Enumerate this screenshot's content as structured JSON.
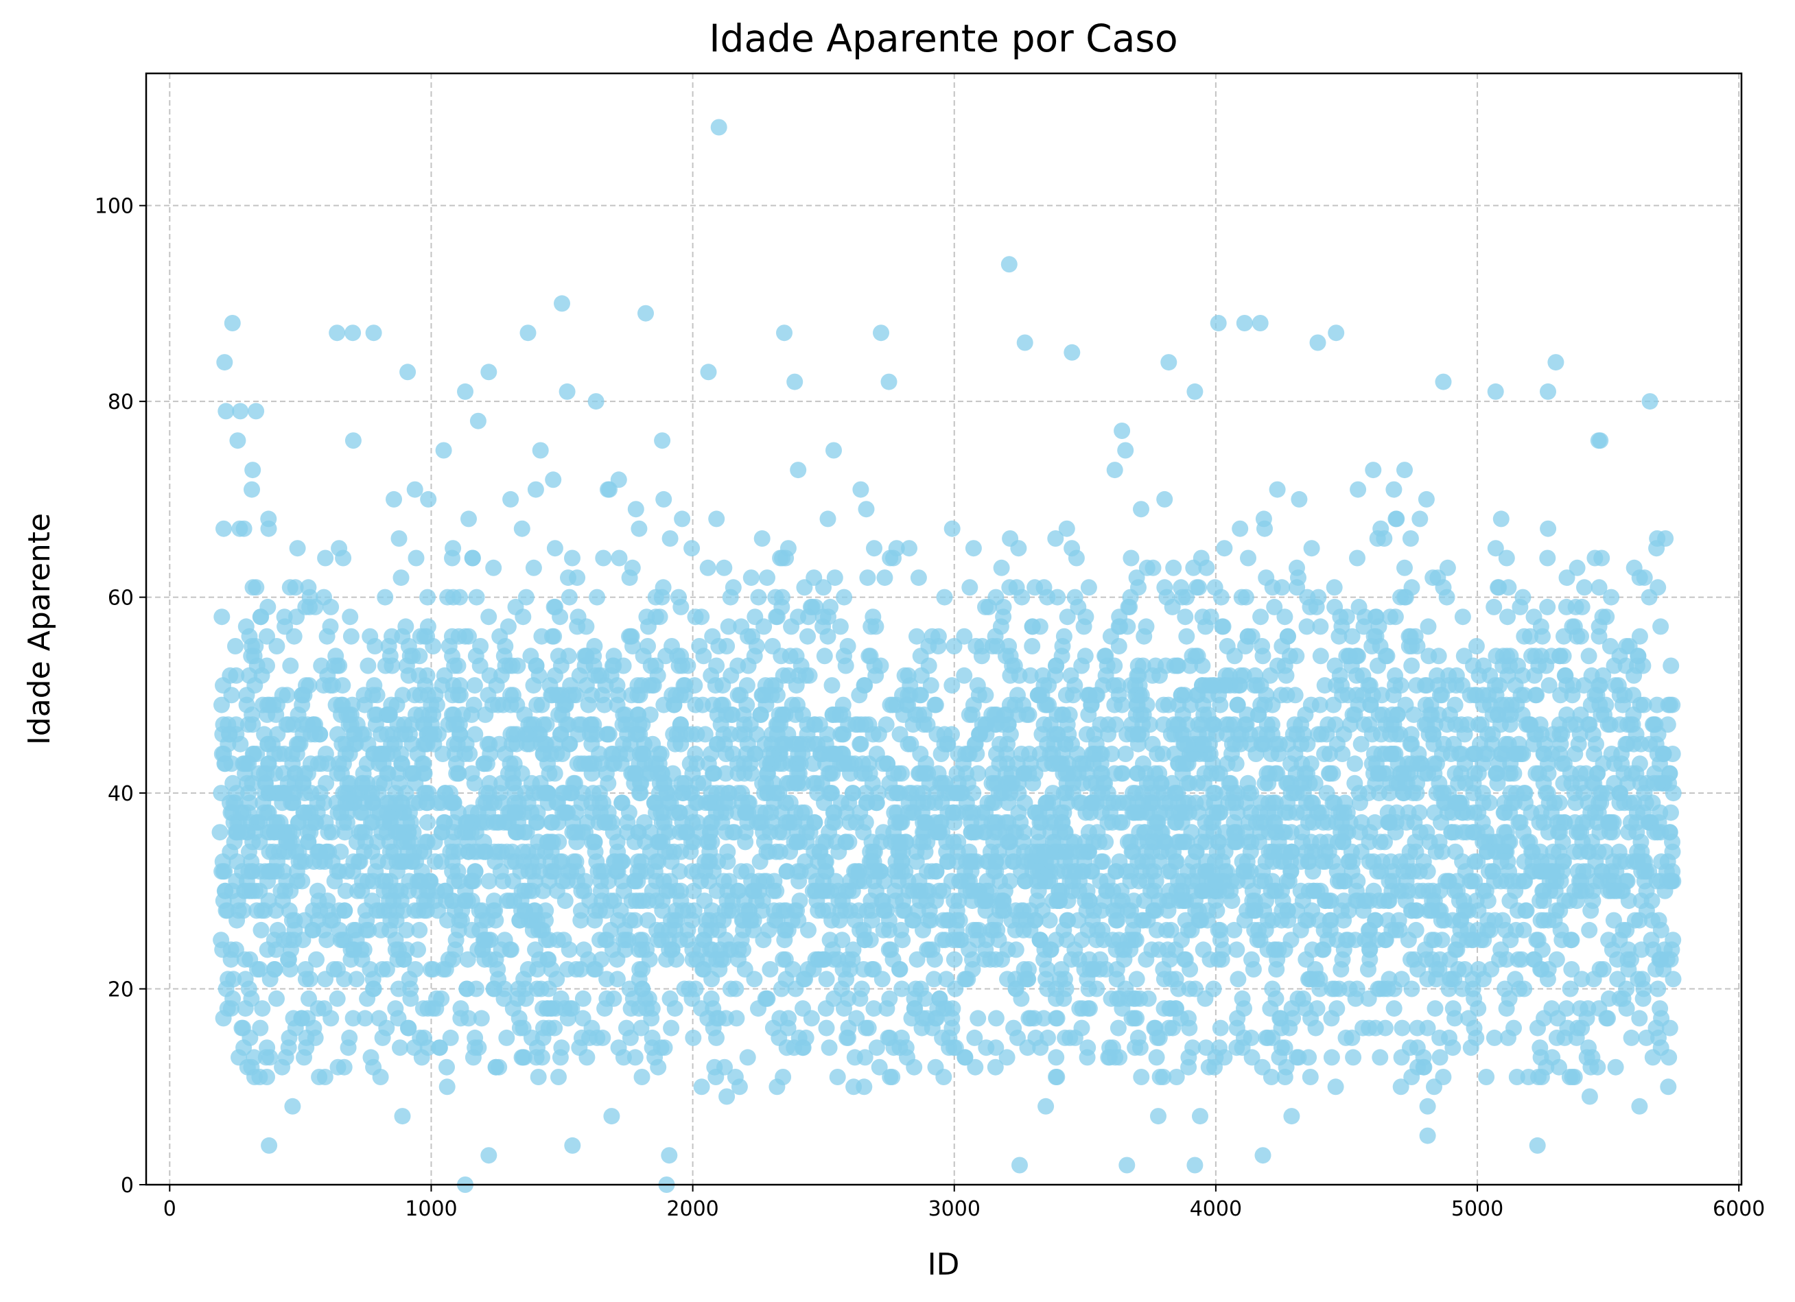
{
  "chart_data": {
    "type": "scatter",
    "title": "Idade Aparente por Caso",
    "xlabel": "ID",
    "ylabel": "Idade Aparente",
    "xlim": [
      -90,
      6010
    ],
    "ylim": [
      0,
      113.5
    ],
    "xticks": [
      0,
      1000,
      2000,
      3000,
      4000,
      5000,
      6000
    ],
    "yticks": [
      0,
      20,
      40,
      60,
      80,
      100
    ],
    "grid": true,
    "marker_color": "#87CEEB",
    "marker_alpha": 0.75,
    "outliers": [
      {
        "x": 210,
        "y": 84
      },
      {
        "x": 240,
        "y": 88
      },
      {
        "x": 215,
        "y": 79
      },
      {
        "x": 260,
        "y": 76
      },
      {
        "x": 270,
        "y": 79
      },
      {
        "x": 330,
        "y": 79
      },
      {
        "x": 640,
        "y": 87
      },
      {
        "x": 700,
        "y": 87
      },
      {
        "x": 780,
        "y": 87
      },
      {
        "x": 910,
        "y": 83
      },
      {
        "x": 1130,
        "y": 81
      },
      {
        "x": 1220,
        "y": 83
      },
      {
        "x": 1370,
        "y": 87
      },
      {
        "x": 1500,
        "y": 90
      },
      {
        "x": 1520,
        "y": 81
      },
      {
        "x": 1630,
        "y": 80
      },
      {
        "x": 1820,
        "y": 89
      },
      {
        "x": 2060,
        "y": 83
      },
      {
        "x": 2100,
        "y": 108
      },
      {
        "x": 2350,
        "y": 87
      },
      {
        "x": 2390,
        "y": 82
      },
      {
        "x": 2720,
        "y": 87
      },
      {
        "x": 2750,
        "y": 82
      },
      {
        "x": 3210,
        "y": 94
      },
      {
        "x": 3270,
        "y": 86
      },
      {
        "x": 3450,
        "y": 85
      },
      {
        "x": 3820,
        "y": 84
      },
      {
        "x": 3920,
        "y": 81
      },
      {
        "x": 4010,
        "y": 88
      },
      {
        "x": 4110,
        "y": 88
      },
      {
        "x": 4170,
        "y": 88
      },
      {
        "x": 4390,
        "y": 86
      },
      {
        "x": 4460,
        "y": 87
      },
      {
        "x": 4870,
        "y": 82
      },
      {
        "x": 5070,
        "y": 81
      },
      {
        "x": 5300,
        "y": 84
      },
      {
        "x": 5270,
        "y": 81
      },
      {
        "x": 5660,
        "y": 80
      },
      {
        "x": 380,
        "y": 4
      },
      {
        "x": 1130,
        "y": 0
      },
      {
        "x": 1220,
        "y": 3
      },
      {
        "x": 1540,
        "y": 4
      },
      {
        "x": 1900,
        "y": 0
      },
      {
        "x": 1910,
        "y": 3
      },
      {
        "x": 3250,
        "y": 2
      },
      {
        "x": 3660,
        "y": 2
      },
      {
        "x": 3920,
        "y": 2
      },
      {
        "x": 4180,
        "y": 3
      },
      {
        "x": 4810,
        "y": 5
      },
      {
        "x": 5230,
        "y": 4
      },
      {
        "x": 470,
        "y": 8
      },
      {
        "x": 890,
        "y": 7
      },
      {
        "x": 2130,
        "y": 9
      },
      {
        "x": 3350,
        "y": 8
      },
      {
        "x": 3780,
        "y": 7
      },
      {
        "x": 3940,
        "y": 7
      },
      {
        "x": 4290,
        "y": 7
      },
      {
        "x": 4810,
        "y": 8
      },
      {
        "x": 5430,
        "y": 9
      },
      {
        "x": 5620,
        "y": 8
      },
      {
        "x": 1690,
        "y": 7
      },
      {
        "x": 5730,
        "y": 10
      }
    ],
    "bulk": {
      "x_range": [
        190,
        5750
      ],
      "y_center": 37,
      "y_range": [
        10,
        78
      ],
      "n_points": 5200
    }
  }
}
